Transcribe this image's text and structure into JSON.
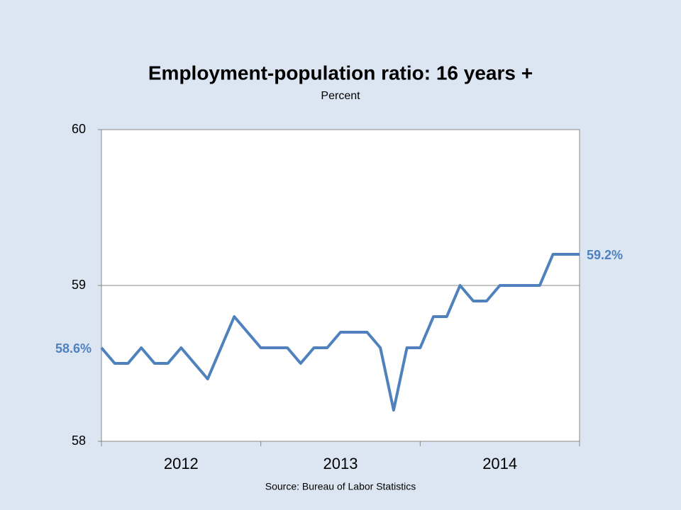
{
  "chart_data": {
    "type": "line",
    "title": "Employment-population ratio: 16 years +",
    "subtitle": "Percent",
    "source": "Source: Bureau of Labor Statistics",
    "x_labels": [
      "2012",
      "2013",
      "2014"
    ],
    "values": [
      58.6,
      58.5,
      58.5,
      58.6,
      58.5,
      58.5,
      58.6,
      58.5,
      58.4,
      58.6,
      58.8,
      58.7,
      58.6,
      58.6,
      58.6,
      58.5,
      58.6,
      58.6,
      58.7,
      58.7,
      58.7,
      58.6,
      58.2,
      58.6,
      58.6,
      58.8,
      58.8,
      59.0,
      58.9,
      58.9,
      59.0,
      59.0,
      59.0,
      59.0,
      59.2,
      59.2,
      59.2
    ],
    "value_labels": [
      "58.6%",
      null,
      null,
      null,
      null,
      null,
      null,
      null,
      null,
      null,
      null,
      null,
      null,
      null,
      null,
      null,
      null,
      null,
      null,
      null,
      null,
      null,
      null,
      null,
      null,
      null,
      null,
      null,
      null,
      null,
      null,
      null,
      null,
      null,
      null,
      null,
      "59.2%"
    ],
    "color": "#4f81bd",
    "ylim": [
      58,
      60
    ],
    "yticks": [
      58,
      59,
      60
    ],
    "grid": true
  }
}
